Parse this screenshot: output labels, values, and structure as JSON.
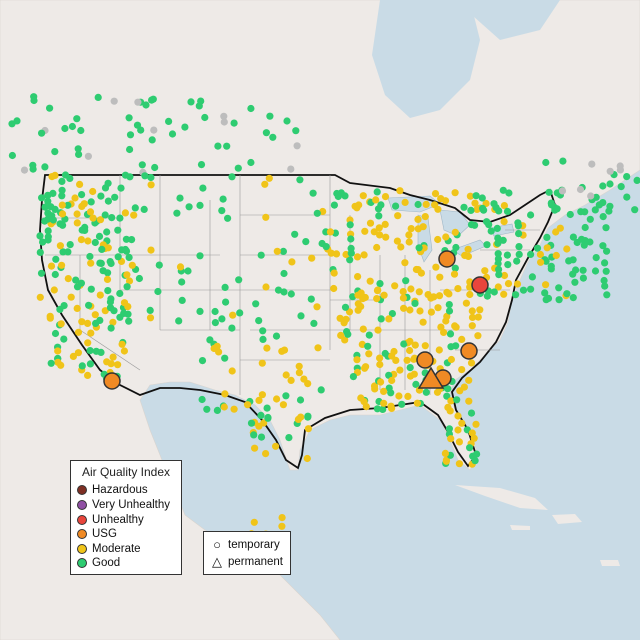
{
  "legend": {
    "title": "Air Quality Index",
    "categories": [
      {
        "label": "Hazardous",
        "color": "#7e2f23"
      },
      {
        "label": "Very Unhealthy",
        "color": "#8f4fa3"
      },
      {
        "label": "Unhealthy",
        "color": "#e8453c"
      },
      {
        "label": "USG",
        "color": "#f08a24"
      },
      {
        "label": "Moderate",
        "color": "#f0c419"
      },
      {
        "label": "Good",
        "color": "#2ecc71"
      }
    ]
  },
  "shape_legend": {
    "items": [
      {
        "label": "temporary",
        "icon": "circle-icon"
      },
      {
        "label": "permanent",
        "icon": "triangle-icon"
      }
    ]
  },
  "colors": {
    "water": "#c9dbe6",
    "land": "#eeeae7",
    "no_data": "#bdbdbd"
  }
}
